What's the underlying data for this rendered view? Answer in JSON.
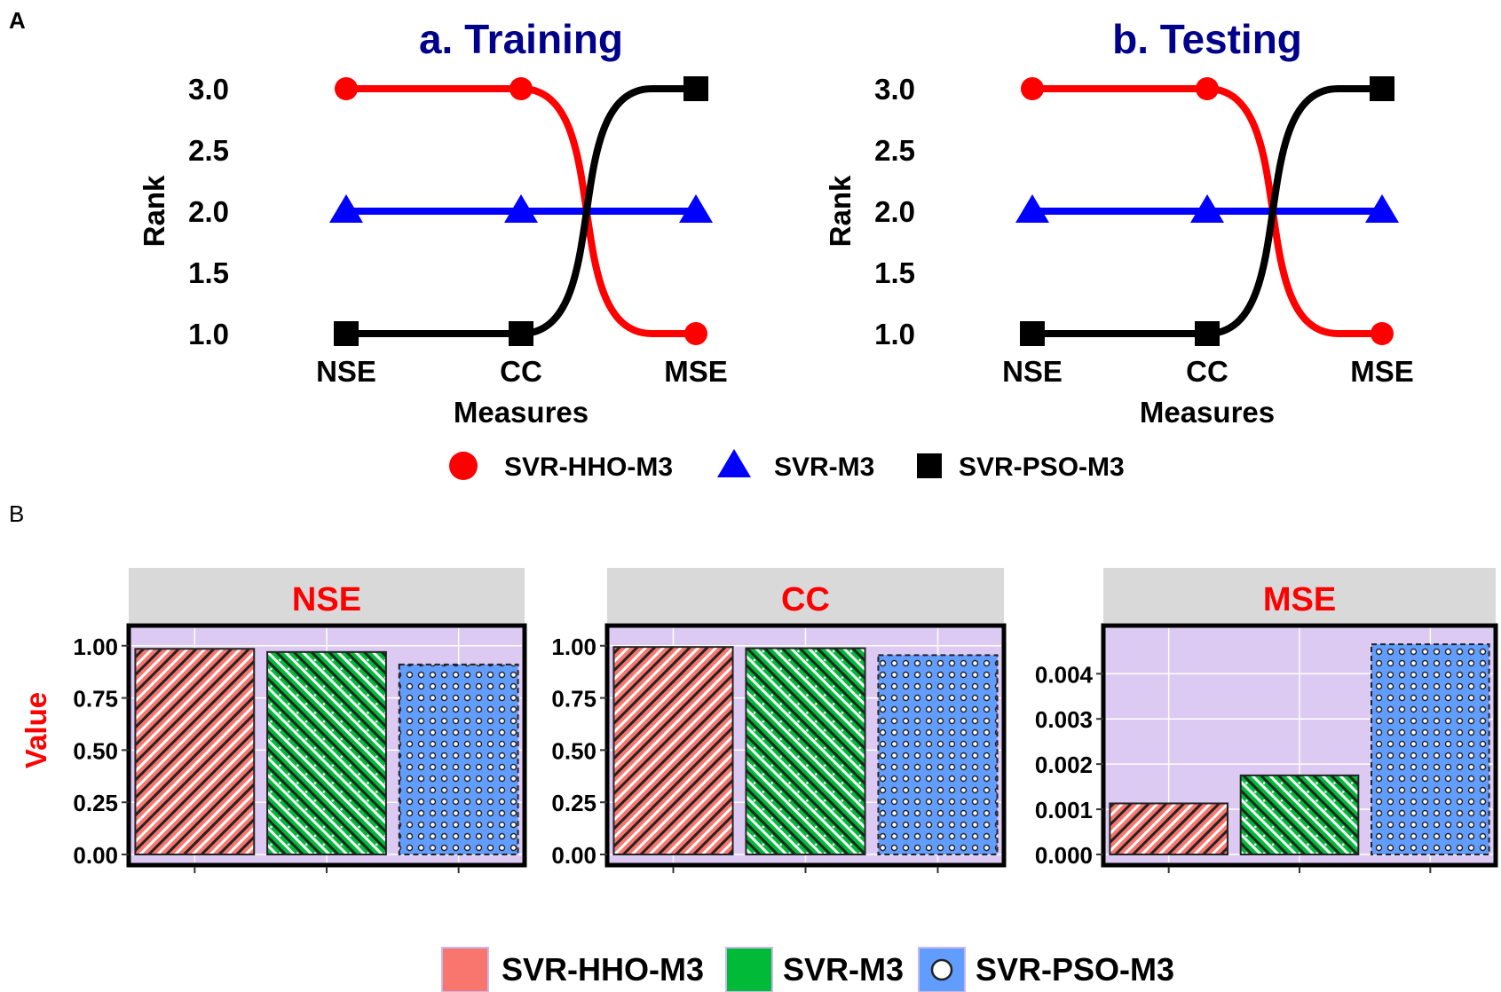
{
  "panel_labels": {
    "a": "A",
    "b": "B"
  },
  "colors": {
    "hho": "#ff0000",
    "svr": "#0000ff",
    "pso": "#000000",
    "title": "#00008b",
    "strip_text": "#ff0000",
    "value_label": "#ff0000",
    "panel_bg": "#dccaf2",
    "strip_bg": "#d9d9d9",
    "bar_hho": "#f8766d",
    "bar_svr": "#00ba38",
    "bar_pso": "#619cff"
  },
  "chart_data": [
    {
      "type": "line",
      "title": "a. Training",
      "xlabel": "Measures",
      "ylabel": "Rank",
      "categories": [
        "NSE",
        "CC",
        "MSE"
      ],
      "yticks": [
        "1.0",
        "1.5",
        "2.0",
        "2.5",
        "3.0"
      ],
      "ylim": [
        1.0,
        3.0
      ],
      "series": [
        {
          "name": "SVR-HHO-M3",
          "values": [
            3,
            3,
            1
          ],
          "marker": "circle"
        },
        {
          "name": "SVR-M3",
          "values": [
            2,
            2,
            2
          ],
          "marker": "triangle"
        },
        {
          "name": "SVR-PSO-M3",
          "values": [
            1,
            1,
            3
          ],
          "marker": "square"
        }
      ]
    },
    {
      "type": "line",
      "title": "b. Testing",
      "xlabel": "Measures",
      "ylabel": "Rank",
      "categories": [
        "NSE",
        "CC",
        "MSE"
      ],
      "yticks": [
        "1.0",
        "1.5",
        "2.0",
        "2.5",
        "3.0"
      ],
      "ylim": [
        1.0,
        3.0
      ],
      "series": [
        {
          "name": "SVR-HHO-M3",
          "values": [
            3,
            3,
            1
          ],
          "marker": "circle"
        },
        {
          "name": "SVR-M3",
          "values": [
            2,
            2,
            2
          ],
          "marker": "triangle"
        },
        {
          "name": "SVR-PSO-M3",
          "values": [
            1,
            1,
            3
          ],
          "marker": "square"
        }
      ]
    },
    {
      "type": "bar",
      "facet": "NSE",
      "ylabel": "Value",
      "categories": [
        "SVR-HHO-M3",
        "SVR-M3",
        "SVR-PSO-M3"
      ],
      "values": [
        0.985,
        0.97,
        0.91
      ],
      "ylim": [
        0,
        1.05
      ],
      "yticks": [
        "0.00",
        "0.25",
        "0.50",
        "0.75",
        "1.00"
      ]
    },
    {
      "type": "bar",
      "facet": "CC",
      "ylabel": "Value",
      "categories": [
        "SVR-HHO-M3",
        "SVR-M3",
        "SVR-PSO-M3"
      ],
      "values": [
        0.994,
        0.988,
        0.955
      ],
      "ylim": [
        0,
        1.05
      ],
      "yticks": [
        "0.00",
        "0.25",
        "0.50",
        "0.75",
        "1.00"
      ]
    },
    {
      "type": "bar",
      "facet": "MSE",
      "ylabel": "Value",
      "categories": [
        "SVR-HHO-M3",
        "SVR-M3",
        "SVR-PSO-M3"
      ],
      "values": [
        0.00113,
        0.00175,
        0.00465
      ],
      "ylim": [
        0,
        0.00485
      ],
      "yticks": [
        "0.000",
        "0.001",
        "0.002",
        "0.003",
        "0.004"
      ]
    }
  ],
  "legend_lines": [
    "SVR-HHO-M3",
    "SVR-M3",
    "SVR-PSO-M3"
  ],
  "legend_bars": [
    "SVR-HHO-M3",
    "SVR-M3",
    "SVR-PSO-M3"
  ]
}
